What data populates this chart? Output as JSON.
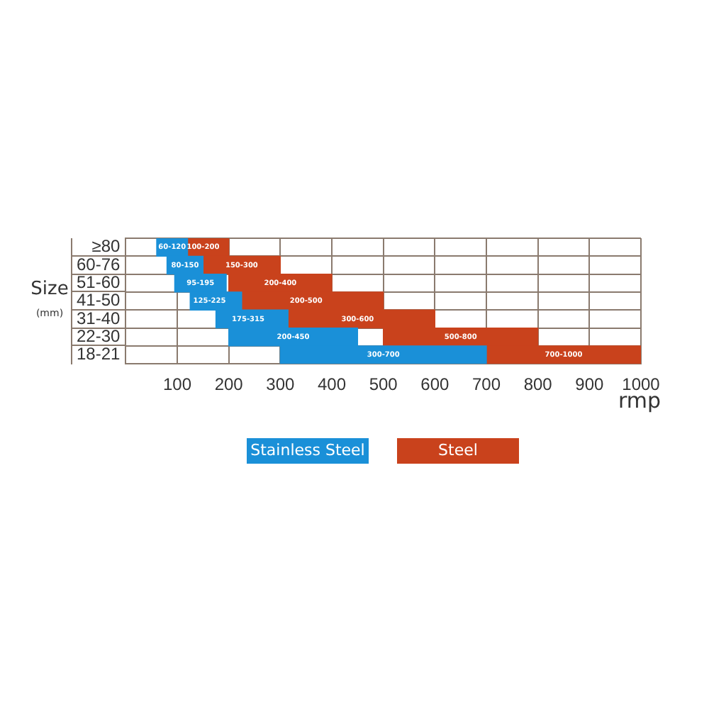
{
  "chart_data": {
    "type": "bar",
    "orientation": "horizontal",
    "ylabel": "Size (mm)",
    "xlabel": "rmp",
    "categories": [
      "≥80",
      "60-76",
      "51-60",
      "41-50",
      "31-40",
      "22-30",
      "18-21"
    ],
    "series": [
      {
        "name": "Stainless Steel",
        "color": "#1a90d8",
        "base": [
          60,
          80,
          95,
          125,
          175,
          200,
          300
        ],
        "values": [
          60,
          70,
          100,
          100,
          140,
          250,
          400
        ],
        "value_labels": [
          "60-120",
          "80-150",
          "95-195",
          "125-225",
          "175-315",
          "200-450",
          "300-700"
        ]
      },
      {
        "name": "Steel",
        "color": "#c9421c",
        "base": [
          100,
          150,
          200,
          200,
          300,
          500,
          700
        ],
        "values": [
          100,
          150,
          200,
          300,
          300,
          300,
          300
        ],
        "value_labels": [
          "100-200",
          "150-300",
          "200-400",
          "200-500",
          "300-600",
          "500-800",
          "700-1000"
        ]
      }
    ],
    "xlim": [
      0,
      1000
    ],
    "xticks": [
      100,
      200,
      300,
      400,
      500,
      600,
      700,
      800,
      900,
      1000
    ],
    "grid": true,
    "legend": "bottom"
  }
}
